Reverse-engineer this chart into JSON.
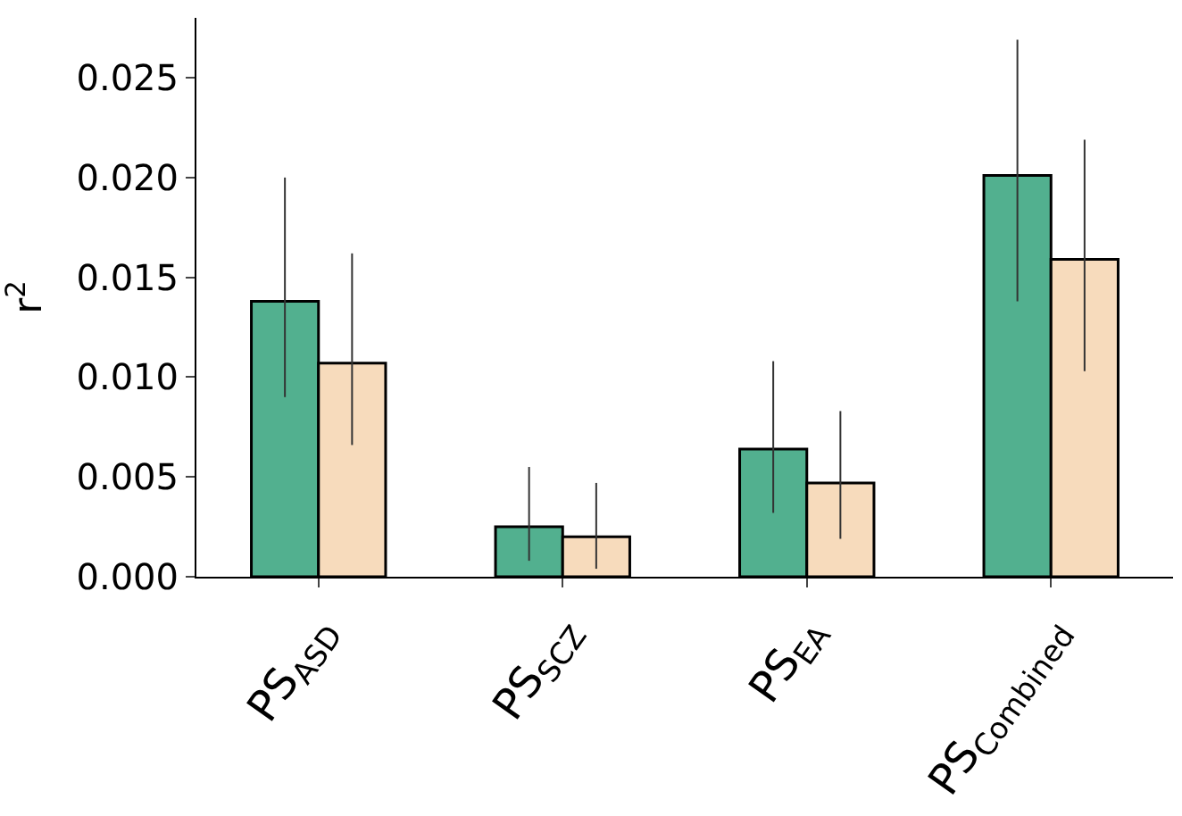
{
  "chart_data": {
    "type": "bar",
    "ylabel": "r$^{2}$",
    "categories": [
      "PS$_{ASD}$",
      "PS$_{SCZ}$",
      "PS$_{EA}$",
      "PS$_{Combined}$"
    ],
    "series": [
      {
        "color": "#52b08f",
        "values": [
          0.0138,
          0.0025,
          0.0064,
          0.0201
        ],
        "errors": [
          [
            0.009,
            0.02
          ],
          [
            0.0008,
            0.0055
          ],
          [
            0.0032,
            0.0108
          ],
          [
            0.0138,
            0.0269
          ]
        ]
      },
      {
        "color": "#f7dbbc",
        "values": [
          0.0107,
          0.002,
          0.0047,
          0.0159
        ],
        "errors": [
          [
            0.0066,
            0.0162
          ],
          [
            0.0004,
            0.0047
          ],
          [
            0.0019,
            0.0083
          ],
          [
            0.0103,
            0.0219
          ]
        ]
      }
    ],
    "ylim": [
      0,
      0.028
    ],
    "yticks": [
      {
        "value": 0,
        "label": "0.000"
      },
      {
        "value": 0.005,
        "label": "0.005"
      },
      {
        "value": 0.01,
        "label": "0.010"
      },
      {
        "value": 0.015,
        "label": "0.015"
      },
      {
        "value": 0.02,
        "label": "0.020"
      },
      {
        "value": 0.025,
        "label": "0.025"
      }
    ]
  }
}
